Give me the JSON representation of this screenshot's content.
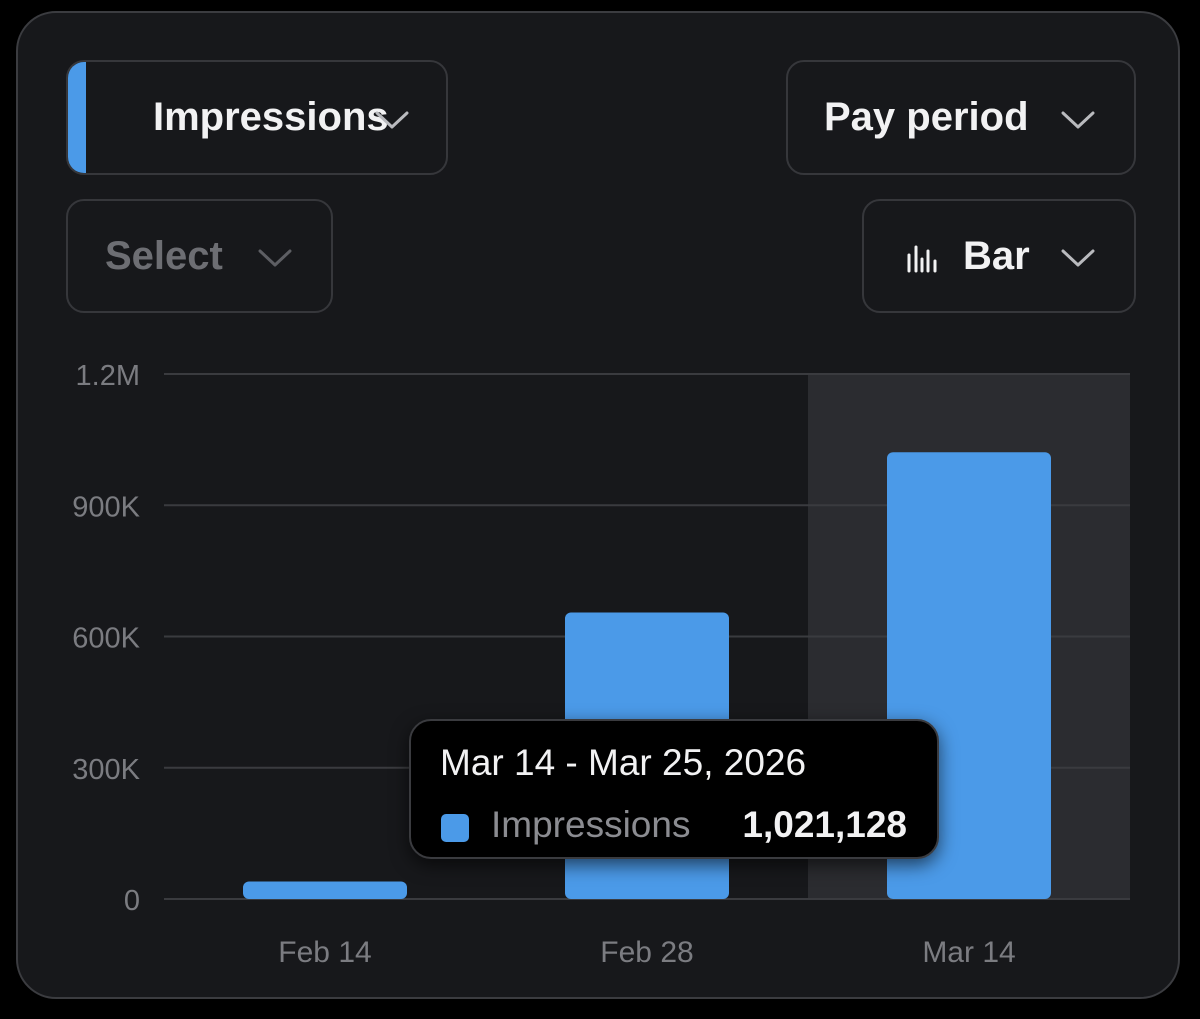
{
  "controls": {
    "metric_label": "Impressions",
    "period_label": "Pay period",
    "compare_label": "Select",
    "chart_type_label": "Bar",
    "chart_type_icon": "bar-chart-icon"
  },
  "colors": {
    "accent": "#4b9ae8",
    "background": "#17181b",
    "highlight": "#2b2c30"
  },
  "chart_data": {
    "type": "bar",
    "categories": [
      "Feb 14",
      "Feb 28",
      "Mar 14"
    ],
    "series": [
      {
        "name": "Impressions",
        "values": [
          40000,
          655000,
          1021128
        ]
      }
    ],
    "ylim": [
      0,
      1200000
    ],
    "yticks": [
      {
        "value": 0,
        "label": "0"
      },
      {
        "value": 300000,
        "label": "300K"
      },
      {
        "value": 600000,
        "label": "600K"
      },
      {
        "value": 900000,
        "label": "900K"
      },
      {
        "value": 1200000,
        "label": "1.2M"
      }
    ],
    "highlighted_category": "Mar 14",
    "grid": true,
    "tooltip": {
      "range": "Mar 14 - Mar 25, 2026",
      "series": "Impressions",
      "value": "1,021,128"
    }
  }
}
